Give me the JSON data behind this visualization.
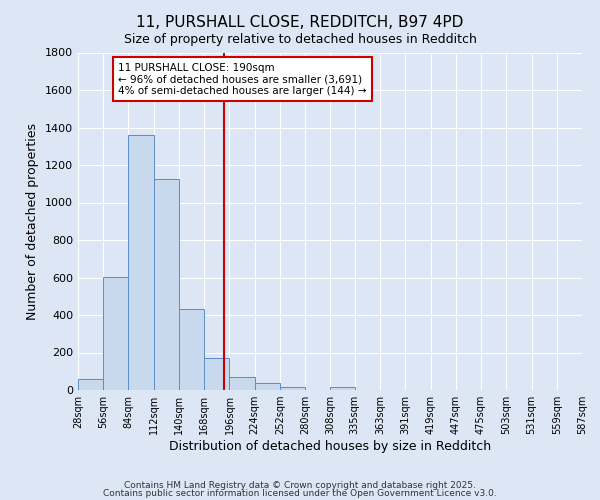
{
  "title1": "11, PURSHALL CLOSE, REDDITCH, B97 4PD",
  "title2": "Size of property relative to detached houses in Redditch",
  "xlabel": "Distribution of detached houses by size in Redditch",
  "ylabel": "Number of detached properties",
  "bar_edges": [
    28,
    56,
    84,
    112,
    140,
    168,
    196,
    224,
    252,
    280,
    308,
    335,
    363,
    391,
    419,
    447,
    475,
    503,
    531,
    559,
    587
  ],
  "bar_heights": [
    57,
    605,
    1362,
    1127,
    431,
    170,
    72,
    35,
    15,
    0,
    15,
    0,
    0,
    0,
    0,
    0,
    0,
    0,
    0,
    0
  ],
  "bar_color": "#c8d9ee",
  "bar_edge_color": "#5b8cc8",
  "vline_x": 190,
  "vline_color": "#cc0000",
  "annotation_text": "11 PURSHALL CLOSE: 190sqm\n← 96% of detached houses are smaller (3,691)\n4% of semi-detached houses are larger (144) →",
  "annotation_box_color": "#ffffff",
  "annotation_box_edge_color": "#cc0000",
  "ylim": [
    0,
    1800
  ],
  "yticks": [
    0,
    200,
    400,
    600,
    800,
    1000,
    1200,
    1400,
    1600,
    1800
  ],
  "xtick_labels": [
    "28sqm",
    "56sqm",
    "84sqm",
    "112sqm",
    "140sqm",
    "168sqm",
    "196sqm",
    "224sqm",
    "252sqm",
    "280sqm",
    "308sqm",
    "335sqm",
    "363sqm",
    "391sqm",
    "419sqm",
    "447sqm",
    "475sqm",
    "503sqm",
    "531sqm",
    "559sqm",
    "587sqm"
  ],
  "background_color": "#dce6f5",
  "grid_color": "#ffffff",
  "footer1": "Contains HM Land Registry data © Crown copyright and database right 2025.",
  "footer2": "Contains public sector information licensed under the Open Government Licence v3.0.",
  "fig_width": 6.0,
  "fig_height": 5.0,
  "dpi": 100
}
